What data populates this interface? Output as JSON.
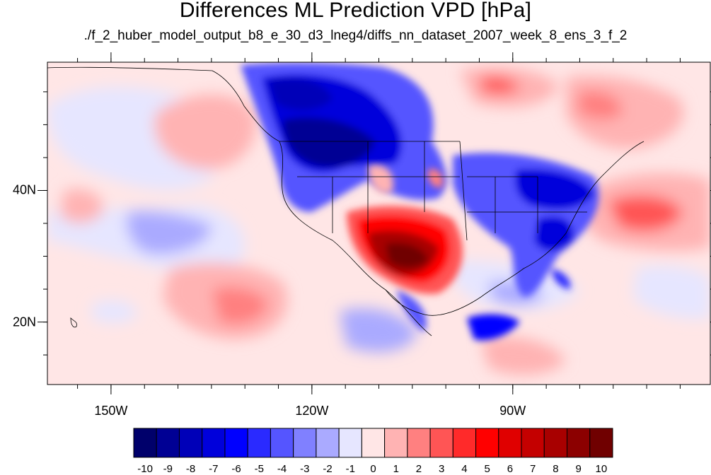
{
  "title": "Differences ML Prediction VPD [hPa]",
  "subtitle": "./f_2_huber_model_output_b8_e_30_d3_lneg4/diffs_nn_dataset_2007_week_8_ens_3_f_2",
  "map": {
    "lon_range": [
      -159.5,
      -60.5
    ],
    "lat_range": [
      10.5,
      59.5
    ],
    "lat_ticks": [
      {
        "value": 40,
        "label": "40N"
      },
      {
        "value": 20,
        "label": "20N"
      }
    ],
    "lon_ticks": [
      {
        "value": -150,
        "label": "150W"
      },
      {
        "value": -120,
        "label": "120W"
      },
      {
        "value": -90,
        "label": "90W"
      }
    ]
  },
  "colorbar": {
    "labels": [
      "-10",
      "-9",
      "-8",
      "-7",
      "-6",
      "-5",
      "-4",
      "-3",
      "-2",
      "-1",
      "0",
      "1",
      "2",
      "3",
      "4",
      "5",
      "6",
      "7",
      "8",
      "9",
      "10"
    ],
    "colors": [
      "#00006b",
      "#000094",
      "#0000b8",
      "#0000db",
      "#0000ff",
      "#2a2aff",
      "#5555ff",
      "#8080ff",
      "#aaaaff",
      "#e6e6ff",
      "#ffe6e6",
      "#ffb3b3",
      "#ff8080",
      "#ff5555",
      "#ff2a2a",
      "#ff0000",
      "#e00000",
      "#c40000",
      "#a80000",
      "#8c0000",
      "#700000"
    ]
  }
}
